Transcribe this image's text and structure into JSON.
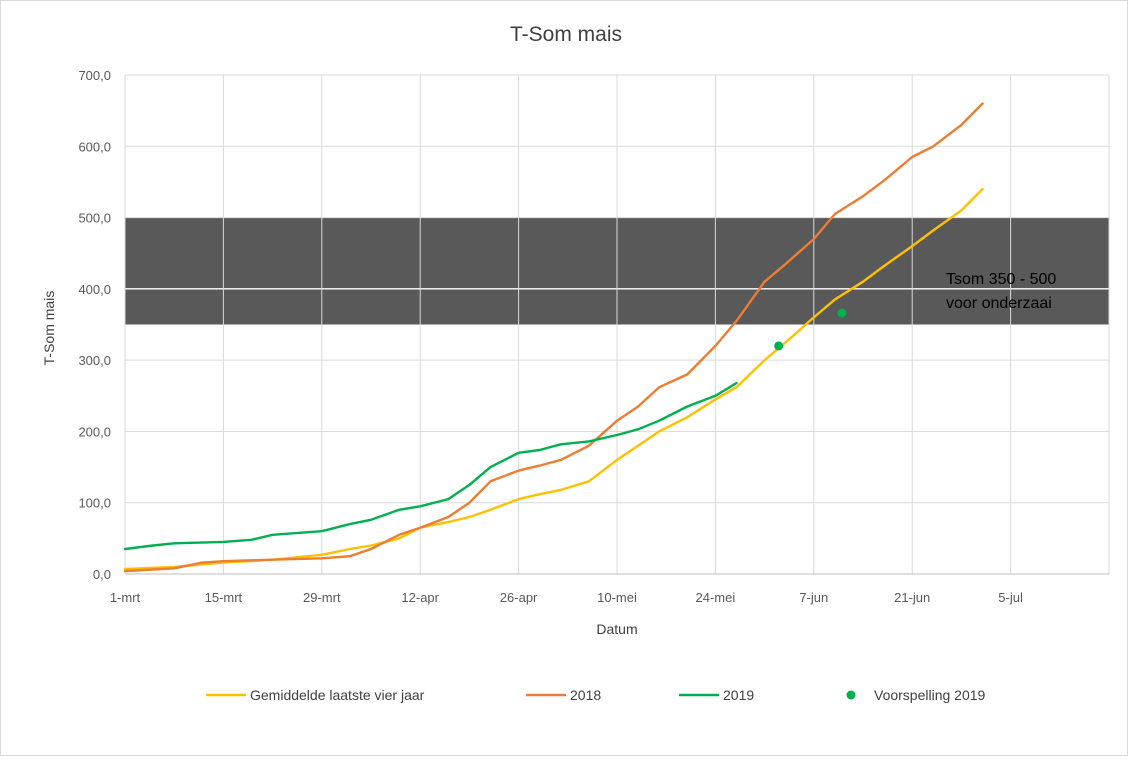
{
  "chart_data": {
    "type": "line",
    "title": "T-Som mais",
    "xlabel": "Datum",
    "ylabel": "T-Som mais",
    "ylim": [
      0,
      700
    ],
    "y_ticks": [
      0,
      100,
      200,
      300,
      400,
      500,
      600,
      700
    ],
    "y_tick_labels": [
      "0,0",
      "100,0",
      "200,0",
      "300,0",
      "400,0",
      "500,0",
      "600,0",
      "700,0"
    ],
    "x_range": [
      "2019-03-01",
      "2019-07-19"
    ],
    "x_ticks": [
      "2019-03-01",
      "2019-03-15",
      "2019-03-29",
      "2019-04-12",
      "2019-04-26",
      "2019-05-10",
      "2019-05-24",
      "2019-06-07",
      "2019-06-21",
      "2019-07-05"
    ],
    "x_tick_labels": [
      "1-mrt",
      "15-mrt",
      "29-mrt",
      "12-apr",
      "26-apr",
      "10-mei",
      "24-mei",
      "7-jun",
      "21-jun",
      "5-jul"
    ],
    "grid": true,
    "legend_position": "bottom",
    "band": {
      "y_from": 350,
      "y_to": 500,
      "color": "#595959",
      "label_lines": [
        "Tsom 350 - 500",
        "voor onderzaai"
      ]
    },
    "series": [
      {
        "name": "Gemiddelde laatste vier jaar",
        "color": "#FFC000",
        "kind": "line",
        "points": [
          [
            "2019-03-01",
            7
          ],
          [
            "2019-03-08",
            10
          ],
          [
            "2019-03-15",
            16
          ],
          [
            "2019-03-22",
            20
          ],
          [
            "2019-03-29",
            27
          ],
          [
            "2019-04-02",
            35
          ],
          [
            "2019-04-05",
            40
          ],
          [
            "2019-04-09",
            50
          ],
          [
            "2019-04-12",
            65
          ],
          [
            "2019-04-16",
            73
          ],
          [
            "2019-04-19",
            80
          ],
          [
            "2019-04-22",
            90
          ],
          [
            "2019-04-26",
            105
          ],
          [
            "2019-04-29",
            112
          ],
          [
            "2019-05-02",
            118
          ],
          [
            "2019-05-06",
            130
          ],
          [
            "2019-05-10",
            160
          ],
          [
            "2019-05-13",
            180
          ],
          [
            "2019-05-16",
            200
          ],
          [
            "2019-05-20",
            220
          ],
          [
            "2019-05-24",
            245
          ],
          [
            "2019-05-27",
            262
          ],
          [
            "2019-05-31",
            300
          ],
          [
            "2019-06-03",
            325
          ],
          [
            "2019-06-07",
            360
          ],
          [
            "2019-06-10",
            385
          ],
          [
            "2019-06-14",
            410
          ],
          [
            "2019-06-17",
            432
          ],
          [
            "2019-06-21",
            460
          ],
          [
            "2019-06-24",
            482
          ],
          [
            "2019-06-28",
            510
          ],
          [
            "2019-07-01",
            540
          ]
        ]
      },
      {
        "name": "2018",
        "color": "#ED7D31",
        "kind": "line",
        "points": [
          [
            "2019-03-01",
            4
          ],
          [
            "2019-03-08",
            8
          ],
          [
            "2019-03-12",
            16
          ],
          [
            "2019-03-15",
            18
          ],
          [
            "2019-03-22",
            20
          ],
          [
            "2019-03-29",
            22
          ],
          [
            "2019-04-02",
            25
          ],
          [
            "2019-04-05",
            35
          ],
          [
            "2019-04-09",
            55
          ],
          [
            "2019-04-12",
            65
          ],
          [
            "2019-04-16",
            80
          ],
          [
            "2019-04-19",
            100
          ],
          [
            "2019-04-22",
            130
          ],
          [
            "2019-04-26",
            145
          ],
          [
            "2019-04-29",
            152
          ],
          [
            "2019-05-02",
            160
          ],
          [
            "2019-05-06",
            180
          ],
          [
            "2019-05-10",
            215
          ],
          [
            "2019-05-13",
            235
          ],
          [
            "2019-05-16",
            262
          ],
          [
            "2019-05-20",
            280
          ],
          [
            "2019-05-24",
            320
          ],
          [
            "2019-05-27",
            355
          ],
          [
            "2019-05-31",
            410
          ],
          [
            "2019-06-03",
            435
          ],
          [
            "2019-06-07",
            470
          ],
          [
            "2019-06-10",
            505
          ],
          [
            "2019-06-14",
            530
          ],
          [
            "2019-06-17",
            552
          ],
          [
            "2019-06-21",
            585
          ],
          [
            "2019-06-24",
            600
          ],
          [
            "2019-06-28",
            630
          ],
          [
            "2019-07-01",
            660
          ]
        ]
      },
      {
        "name": "2019",
        "color": "#00B050",
        "kind": "line",
        "points": [
          [
            "2019-03-01",
            35
          ],
          [
            "2019-03-05",
            40
          ],
          [
            "2019-03-08",
            43
          ],
          [
            "2019-03-15",
            45
          ],
          [
            "2019-03-19",
            48
          ],
          [
            "2019-03-22",
            55
          ],
          [
            "2019-03-29",
            60
          ],
          [
            "2019-04-02",
            70
          ],
          [
            "2019-04-05",
            76
          ],
          [
            "2019-04-09",
            90
          ],
          [
            "2019-04-12",
            95
          ],
          [
            "2019-04-16",
            105
          ],
          [
            "2019-04-19",
            125
          ],
          [
            "2019-04-22",
            150
          ],
          [
            "2019-04-26",
            170
          ],
          [
            "2019-04-29",
            174
          ],
          [
            "2019-05-02",
            182
          ],
          [
            "2019-05-06",
            186
          ],
          [
            "2019-05-10",
            195
          ],
          [
            "2019-05-13",
            203
          ],
          [
            "2019-05-16",
            215
          ],
          [
            "2019-05-20",
            235
          ],
          [
            "2019-05-24",
            250
          ],
          [
            "2019-05-27",
            268
          ]
        ]
      },
      {
        "name": "Voorspelling 2019",
        "color": "#00B050",
        "kind": "scatter",
        "points": [
          [
            "2019-06-02",
            320
          ],
          [
            "2019-06-11",
            366
          ]
        ]
      }
    ]
  }
}
